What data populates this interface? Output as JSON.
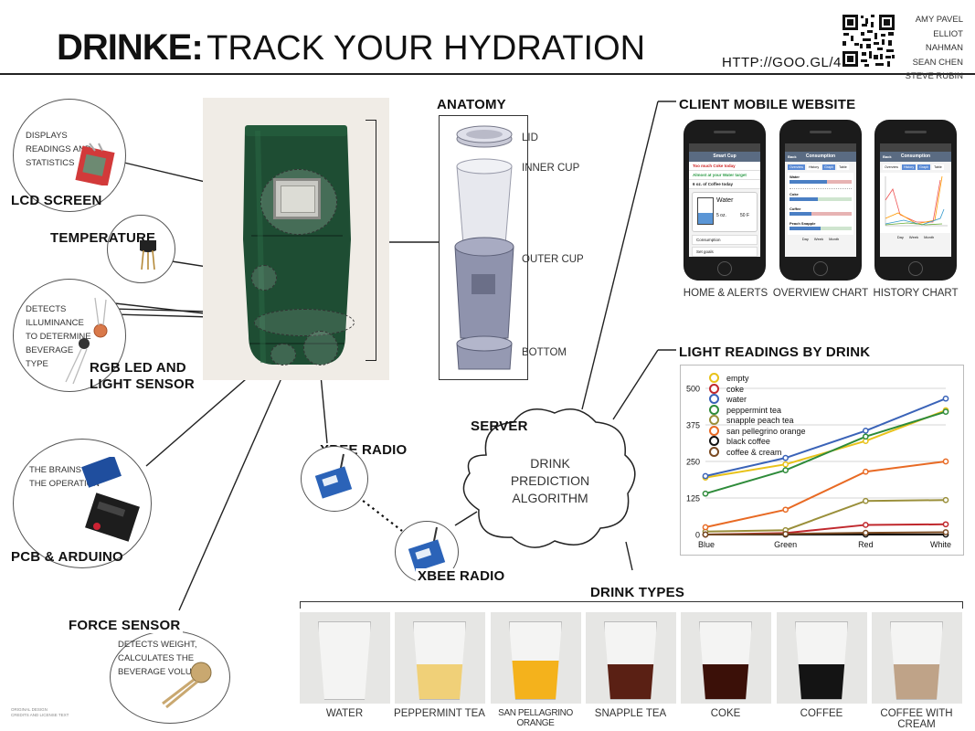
{
  "header": {
    "title_bold": "DRINKE:",
    "title_rest": "TRACK YOUR HYDRATION",
    "url": "HTTP://GOO.GL/4ELSO",
    "authors": [
      "AMY PAVEL",
      "ELLIOT NAHMAN",
      "SEAN CHEN",
      "STEVE RUBIN"
    ],
    "qr_icon": "qr-code-icon"
  },
  "components": {
    "lcd": {
      "label": "LCD SCREEN",
      "desc": [
        "DISPLAYS",
        "READINGS AND",
        "STATISTICS"
      ]
    },
    "temperature": {
      "label": "TEMPERATURE"
    },
    "rgb": {
      "label_line1": "RGB LED AND",
      "label_line2": "LIGHT SENSOR",
      "desc": [
        "DETECTS",
        "ILLUMINANCE",
        "TO DETERMINE",
        "BEVERAGE",
        "TYPE"
      ]
    },
    "pcb": {
      "label": "PCB & ARDUINO",
      "desc": [
        "THE BRAINS OF",
        "THE OPERATION"
      ]
    },
    "force": {
      "label": "FORCE SENSOR",
      "desc": [
        "DETECTS WEIGHT,",
        "CALCULATES THE",
        "BEVERAGE VOLUME"
      ]
    }
  },
  "anatomy": {
    "title": "ANATOMY",
    "parts": [
      "LID",
      "INNER CUP",
      "OUTER CUP",
      "BOTTOM"
    ]
  },
  "network": {
    "xbee_top": "XBEE RADIO",
    "xbee_bottom": "XBEE RADIO",
    "server": "SERVER",
    "algorithm_line1": "DRINK PREDICTION",
    "algorithm_line2": "ALGORITHM"
  },
  "client": {
    "title": "CLIENT MOBILE WEBSITE",
    "screens": [
      {
        "caption": "HOME & ALERTS",
        "header": "Smart Cup",
        "rows": [
          "Too much Coke today",
          "Almost at your Water target",
          "6 oz. of Coffee today"
        ],
        "drink": "Water",
        "volume": "5 oz.",
        "temp": "50 F",
        "links": [
          "Consumption",
          "Set goals"
        ]
      },
      {
        "caption": "OVERVIEW CHART",
        "header": "Consumption",
        "back": "Back",
        "tabs": [
          "Overview",
          "History",
          "Graph",
          "Table"
        ],
        "bars": [
          "Water",
          "Coke",
          "Coffee",
          "Peach Snapple"
        ],
        "radios": [
          "Day",
          "Week",
          "Month"
        ]
      },
      {
        "caption": "HISTORY CHART",
        "header": "Consumption",
        "back": "Back",
        "tabs": [
          "Overview",
          "History",
          "Graph",
          "Table"
        ],
        "radios": [
          "Day",
          "Week",
          "Month"
        ]
      }
    ]
  },
  "chart": {
    "title": "LIGHT READINGS BY DRINK"
  },
  "chart_data": {
    "type": "line",
    "categories": [
      "Blue",
      "Green",
      "Red",
      "White"
    ],
    "ylim": [
      0,
      500
    ],
    "yticks": [
      0,
      125,
      250,
      375,
      500
    ],
    "grid": true,
    "legend_position": "top-left",
    "series": [
      {
        "name": "empty",
        "color": "#e8c21a",
        "values": [
          195,
          240,
          320,
          425
        ]
      },
      {
        "name": "coke",
        "color": "#c0282d",
        "values": [
          0,
          5,
          33,
          35
        ]
      },
      {
        "name": "water",
        "color": "#3a63b8",
        "values": [
          200,
          262,
          355,
          465
        ]
      },
      {
        "name": "peppermint tea",
        "color": "#2e8b3a",
        "values": [
          140,
          220,
          335,
          420
        ]
      },
      {
        "name": "snapple peach tea",
        "color": "#9a8f3a",
        "values": [
          10,
          15,
          115,
          118
        ]
      },
      {
        "name": "san pellegrino orange",
        "color": "#e86a24",
        "values": [
          25,
          85,
          215,
          250
        ]
      },
      {
        "name": "black coffee",
        "color": "#111111",
        "values": [
          0,
          0,
          0,
          0
        ]
      },
      {
        "name": "coffee & cream",
        "color": "#7a4a22",
        "values": [
          0,
          2,
          6,
          8
        ]
      }
    ]
  },
  "drink_types": {
    "title": "DRINK TYPES",
    "items": [
      {
        "name": "WATER",
        "color": "#f4f4f2",
        "level": 0.0
      },
      {
        "name": "PEPPERMINT TEA",
        "color": "#f0d078",
        "level": 0.45
      },
      {
        "name": "SAN PELLAGRINO ORANGE",
        "color": "#f4b21c",
        "level": 0.5
      },
      {
        "name": "SNAPPLE TEA",
        "color": "#5a2014",
        "level": 0.45
      },
      {
        "name": "COKE",
        "color": "#3b1008",
        "level": 0.45
      },
      {
        "name": "COFFEE",
        "color": "#141414",
        "level": 0.45
      },
      {
        "name": "COFFEE WITH CREAM",
        "color": "#bfa388",
        "level": 0.45
      }
    ]
  },
  "footer_small": [
    "ORIGINAL DESIGN",
    "CREDITS AND LICENSE TEXT"
  ]
}
